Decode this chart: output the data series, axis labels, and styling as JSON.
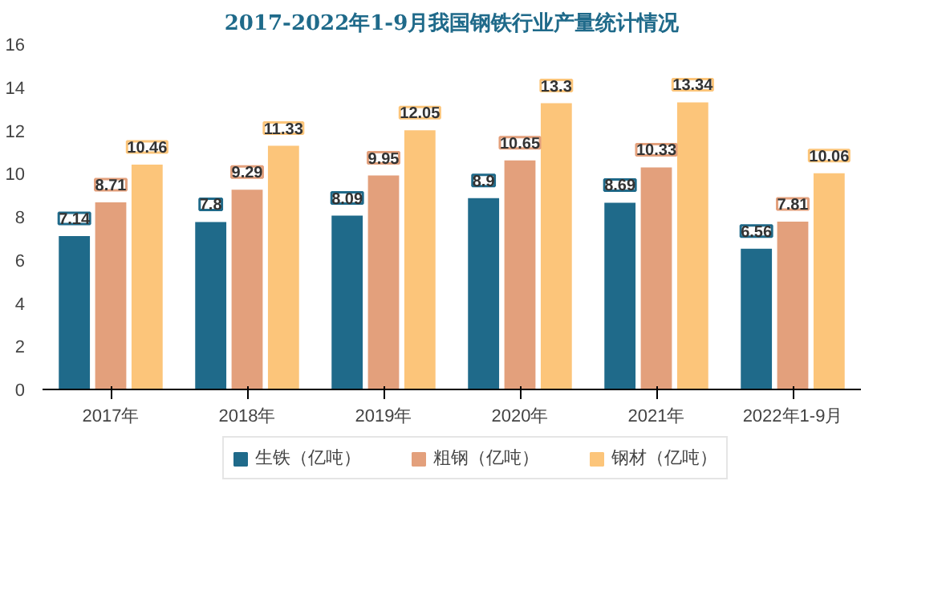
{
  "chart_data": {
    "type": "bar",
    "title": "2017-2022年1-9月我国钢铁行业产量统计情况",
    "categories": [
      "2017年",
      "2018年",
      "2019年",
      "2020年",
      "2021年",
      "2022年1-9月"
    ],
    "series": [
      {
        "name": "生铁（亿吨）",
        "color": "#1f6a8a",
        "values": [
          7.14,
          7.8,
          8.09,
          8.9,
          8.69,
          6.56
        ]
      },
      {
        "name": "粗钢（亿吨）",
        "color": "#e3a07c",
        "values": [
          8.71,
          9.29,
          9.95,
          10.65,
          10.33,
          7.81
        ]
      },
      {
        "name": "钢材（亿吨）",
        "color": "#fcc57a",
        "values": [
          10.46,
          11.33,
          12.05,
          13.3,
          13.34,
          10.06
        ]
      }
    ],
    "ylim": [
      0,
      16
    ],
    "yticks": [
      0,
      2,
      4,
      6,
      8,
      10,
      12,
      14,
      16
    ],
    "grid": false,
    "legend": "bottom",
    "data_labels": true
  }
}
